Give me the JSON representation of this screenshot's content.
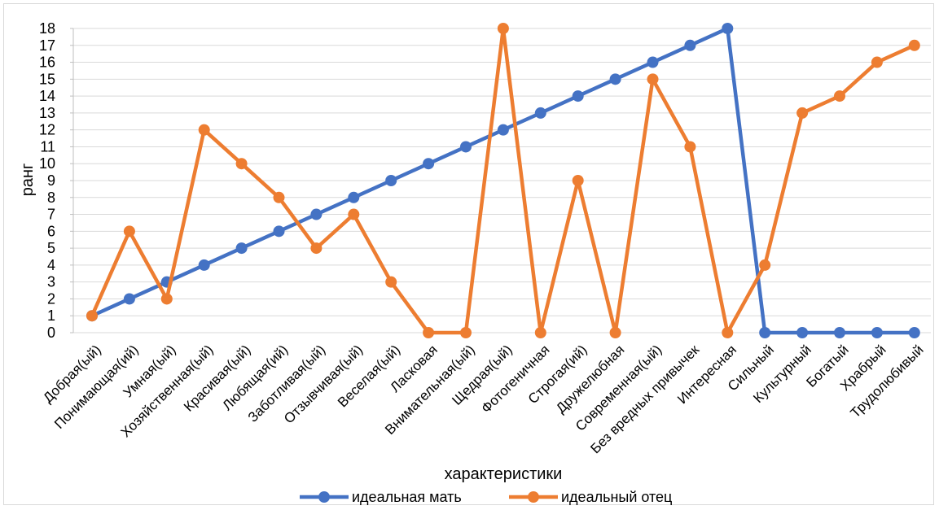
{
  "chart_data": {
    "type": "line",
    "title": "",
    "xlabel": "характеристики",
    "ylabel": "ранг",
    "ylim": [
      0,
      18
    ],
    "y_ticks": [
      0,
      1,
      2,
      3,
      4,
      5,
      6,
      7,
      8,
      9,
      10,
      11,
      12,
      13,
      14,
      15,
      16,
      17,
      18
    ],
    "grid": "horizontal",
    "legend_position": "bottom",
    "categories": [
      "Добрая(ый)",
      "Понимающая(ий)",
      "Умная(ый)",
      "Хозяйственная(ый)",
      "Красивая(ый)",
      "Любящая(ий)",
      "Заботливая(ый)",
      "Отзывчивая(ый)",
      "Веселая(ый)",
      "Ласковая",
      "Внимательная(ый)",
      "Щедрая(ый)",
      "Фотогеничная",
      "Строгая(ий)",
      "Дружелюбная",
      "Современная(ый)",
      "Без вредных привычек",
      "Интересная",
      "Сильный",
      "Культурный",
      "Богатый",
      "Храбрый",
      "Трудолюбивый"
    ],
    "series": [
      {
        "name": "идеальная мать",
        "color": "#4472C4",
        "values": [
          1,
          2,
          3,
          4,
          5,
          6,
          7,
          8,
          9,
          10,
          11,
          12,
          13,
          14,
          15,
          16,
          17,
          18,
          0,
          0,
          0,
          0,
          0
        ]
      },
      {
        "name": "идеальный отец",
        "color": "#ED7D31",
        "values": [
          1,
          6,
          2,
          12,
          10,
          8,
          5,
          7,
          3,
          0,
          0,
          18,
          0,
          9,
          0,
          15,
          11,
          0,
          4,
          13,
          14,
          16,
          17
        ]
      }
    ]
  }
}
